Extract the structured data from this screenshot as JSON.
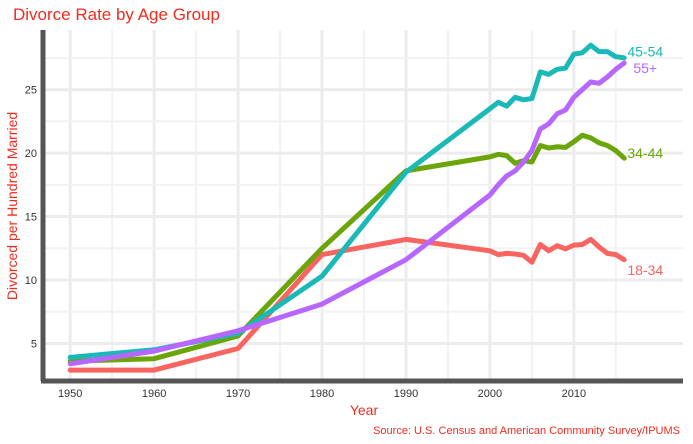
{
  "chart_data": {
    "type": "line",
    "title": "Divorce Rate by Age Group",
    "xlabel": "Year",
    "ylabel": "Divorced per Hundred Married",
    "source": "Source: U.S. Census and American Community Survey/IPUMS",
    "xlim": [
      1947,
      2023
    ],
    "ylim": [
      2.2,
      29.7
    ],
    "x_ticks": [
      1950,
      1960,
      1970,
      1980,
      1990,
      2000,
      2010
    ],
    "y_ticks": [
      5,
      10,
      15,
      20,
      25
    ],
    "grid": true,
    "legend": "direct labels at line ends",
    "series": [
      {
        "name": "18-34",
        "color": "#f8645f",
        "points": [
          [
            1950,
            2.9
          ],
          [
            1960,
            2.9
          ],
          [
            1970,
            4.6
          ],
          [
            1980,
            12.0
          ],
          [
            1990,
            13.2
          ],
          [
            2000,
            12.3
          ],
          [
            2001,
            12.0
          ],
          [
            2002,
            12.1
          ],
          [
            2003,
            12.05
          ],
          [
            2004,
            11.95
          ],
          [
            2005,
            11.4
          ],
          [
            2006,
            12.8
          ],
          [
            2007,
            12.3
          ],
          [
            2008,
            12.7
          ],
          [
            2009,
            12.45
          ],
          [
            2010,
            12.75
          ],
          [
            2011,
            12.8
          ],
          [
            2012,
            13.2
          ],
          [
            2013,
            12.6
          ],
          [
            2014,
            12.1
          ],
          [
            2015,
            12.0
          ],
          [
            2016,
            11.6
          ]
        ]
      },
      {
        "name": "34-44",
        "color": "#6aa50a",
        "points": [
          [
            1950,
            3.6
          ],
          [
            1960,
            3.8
          ],
          [
            1970,
            5.6
          ],
          [
            1980,
            12.5
          ],
          [
            1990,
            18.6
          ],
          [
            2000,
            19.7
          ],
          [
            2001,
            19.9
          ],
          [
            2002,
            19.8
          ],
          [
            2003,
            19.2
          ],
          [
            2004,
            19.4
          ],
          [
            2005,
            19.3
          ],
          [
            2006,
            20.6
          ],
          [
            2007,
            20.4
          ],
          [
            2008,
            20.5
          ],
          [
            2009,
            20.45
          ],
          [
            2010,
            20.9
          ],
          [
            2011,
            21.4
          ],
          [
            2012,
            21.2
          ],
          [
            2013,
            20.8
          ],
          [
            2014,
            20.6
          ],
          [
            2015,
            20.2
          ],
          [
            2016,
            19.6
          ]
        ]
      },
      {
        "name": "45-54",
        "color": "#1bb8b8",
        "points": [
          [
            1950,
            3.9
          ],
          [
            1960,
            4.5
          ],
          [
            1970,
            5.8
          ],
          [
            1980,
            10.3
          ],
          [
            1990,
            18.5
          ],
          [
            2000,
            23.5
          ],
          [
            2001,
            24.0
          ],
          [
            2002,
            23.7
          ],
          [
            2003,
            24.4
          ],
          [
            2004,
            24.2
          ],
          [
            2005,
            24.3
          ],
          [
            2006,
            26.4
          ],
          [
            2007,
            26.2
          ],
          [
            2008,
            26.6
          ],
          [
            2009,
            26.7
          ],
          [
            2010,
            27.8
          ],
          [
            2011,
            27.9
          ],
          [
            2012,
            28.5
          ],
          [
            2013,
            28.0
          ],
          [
            2014,
            28.0
          ],
          [
            2015,
            27.6
          ],
          [
            2016,
            27.5
          ]
        ]
      },
      {
        "name": "55+",
        "color": "#b766ff",
        "points": [
          [
            1950,
            3.4
          ],
          [
            1960,
            4.4
          ],
          [
            1970,
            6.0
          ],
          [
            1980,
            8.1
          ],
          [
            1990,
            11.6
          ],
          [
            2000,
            16.7
          ],
          [
            2001,
            17.5
          ],
          [
            2002,
            18.2
          ],
          [
            2003,
            18.6
          ],
          [
            2004,
            19.3
          ],
          [
            2005,
            20.2
          ],
          [
            2006,
            21.9
          ],
          [
            2007,
            22.3
          ],
          [
            2008,
            23.1
          ],
          [
            2009,
            23.4
          ],
          [
            2010,
            24.4
          ],
          [
            2011,
            25.0
          ],
          [
            2012,
            25.6
          ],
          [
            2013,
            25.5
          ],
          [
            2014,
            26.0
          ],
          [
            2015,
            26.6
          ],
          [
            2016,
            27.1
          ]
        ]
      }
    ],
    "label_y_values": [
      10.8,
      20.0,
      28.0,
      26.7
    ]
  }
}
